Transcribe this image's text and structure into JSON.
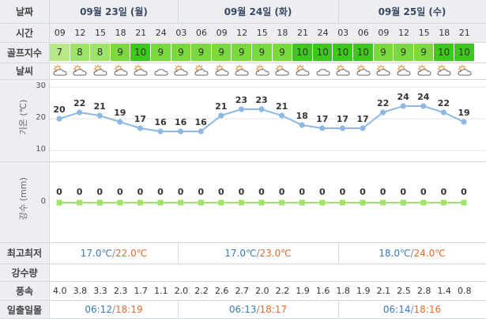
{
  "labels": {
    "date": "날짜",
    "time": "시간",
    "golf_index": "골프지수",
    "weather": "날씨",
    "temperature": "기온 (℃)",
    "precip_chart": "강수 (mm)",
    "minmax": "최고최저",
    "precip_amount": "강수량",
    "wind": "풍속",
    "sunrise_sunset": "일출일몰"
  },
  "days": [
    {
      "label": "09월 23일 (월)",
      "min": "17.0℃",
      "max": "22.0℃",
      "sunrise": "06:12",
      "sunset": "18:19"
    },
    {
      "label": "09월 24일 (화)",
      "min": "17.0℃",
      "max": "23.0℃",
      "sunrise": "06:13",
      "sunset": "18:17"
    },
    {
      "label": "09월 25일 (수)",
      "min": "18.0℃",
      "max": "24.0℃",
      "sunrise": "06:14",
      "sunset": "18:16"
    }
  ],
  "hours": [
    "09",
    "12",
    "15",
    "18",
    "21",
    "24",
    "03",
    "06",
    "09",
    "12",
    "15",
    "18",
    "21",
    "24",
    "03",
    "06",
    "09",
    "12",
    "15",
    "18",
    "21"
  ],
  "golf_index": [
    "7",
    "8",
    "8",
    "9",
    "10",
    "9",
    "9",
    "9",
    "9",
    "9",
    "9",
    "9",
    "10",
    "10",
    "10",
    "10",
    "9",
    "9",
    "9",
    "10",
    "10"
  ],
  "weather_icons": [
    "partly-cloudy-icon",
    "sun-cloud-icon",
    "sun-cloud-icon",
    "sun-cloud-icon",
    "partly-cloudy-icon",
    "cloud-icon",
    "sun-cloud-icon",
    "sun-cloud-icon",
    "sun-cloud-icon",
    "sun-cloud-icon",
    "sun-cloud-icon",
    "partly-cloudy-icon",
    "partly-cloudy-icon",
    "cloud-icon",
    "sun-cloud-icon",
    "sun-cloud-icon",
    "sun-cloud-icon",
    "sun-cloud-icon",
    "sun-cloud-icon",
    "partly-cloudy-icon",
    "partly-cloudy-icon"
  ],
  "wind": [
    "4.0",
    "3.8",
    "3.3",
    "2.3",
    "1.7",
    "1.1",
    "2.0",
    "2.2",
    "2.6",
    "2.7",
    "2.0",
    "2.2",
    "1.9",
    "1.6",
    "1.8",
    "1.9",
    "2.1",
    "2.5",
    "2.8",
    "1.4",
    "0.8"
  ],
  "colors": {
    "golf_7": "#b8e986",
    "golf_8": "#9ee46a",
    "golf_9": "#7ad93f",
    "golf_10": "#3fc81c",
    "temp_line": "#8db9e2",
    "precip_line": "#9ee46a",
    "header_bg": "#eceef1",
    "low_temp": "#3a7ab8",
    "high_temp": "#e26d2c"
  },
  "chart_data": [
    {
      "type": "line",
      "x": [
        "09",
        "12",
        "15",
        "18",
        "21",
        "24",
        "03",
        "06",
        "09",
        "12",
        "15",
        "18",
        "21",
        "24",
        "03",
        "06",
        "09",
        "12",
        "15",
        "18",
        "21"
      ],
      "series": [
        {
          "values": [
            20,
            22,
            21,
            19,
            17,
            16,
            16,
            16,
            21,
            23,
            23,
            21,
            18,
            17,
            17,
            17,
            22,
            24,
            24,
            22,
            19
          ]
        }
      ],
      "xlabel": "",
      "ylabel": "기온 (℃)",
      "ylim": [
        10,
        30
      ],
      "yticks": [
        10,
        20,
        30
      ],
      "data_labels": true
    },
    {
      "type": "line",
      "x": [
        "09",
        "12",
        "15",
        "18",
        "21",
        "24",
        "03",
        "06",
        "09",
        "12",
        "15",
        "18",
        "21",
        "24",
        "03",
        "06",
        "09",
        "12",
        "15",
        "18",
        "21"
      ],
      "series": [
        {
          "values": [
            0,
            0,
            0,
            0,
            0,
            0,
            0,
            0,
            0,
            0,
            0,
            0,
            0,
            0,
            0,
            0,
            0,
            0,
            0,
            0,
            0
          ]
        }
      ],
      "xlabel": "",
      "ylabel": "강수 (mm)",
      "yticks": [
        0
      ],
      "data_labels": true
    }
  ]
}
